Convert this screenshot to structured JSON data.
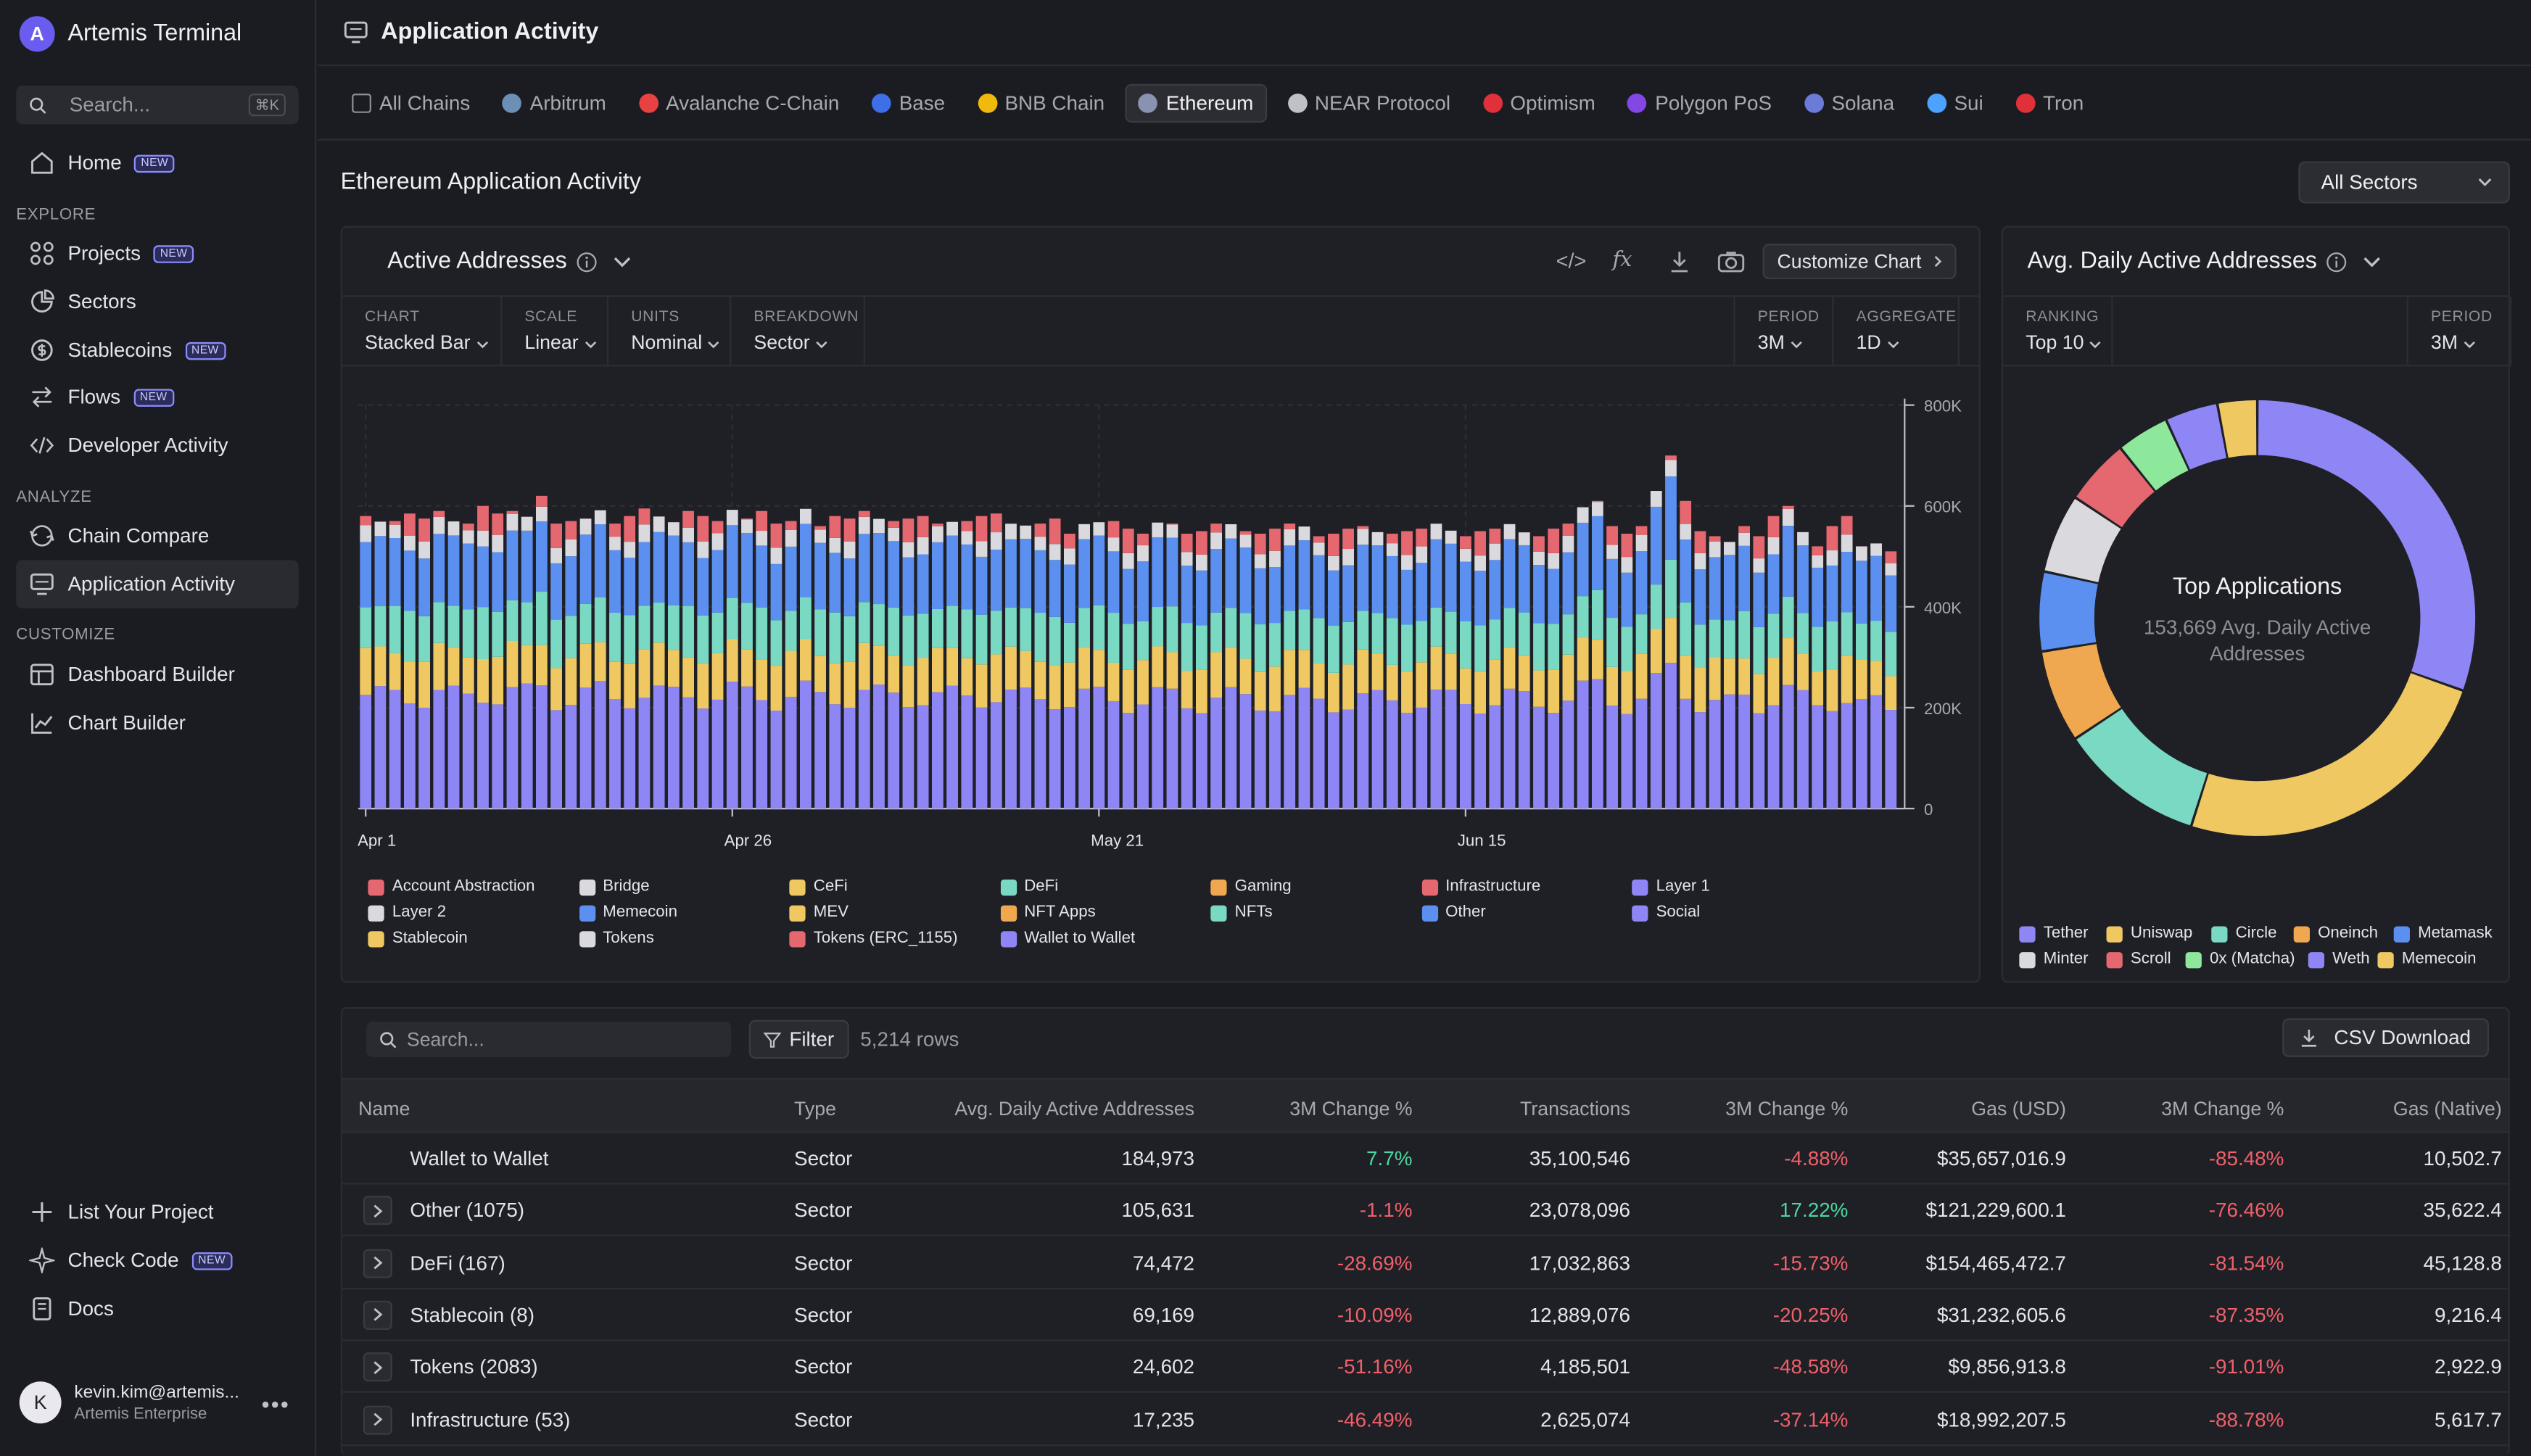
{
  "brand": {
    "name": "Artemis Terminal",
    "logo_letter": "A"
  },
  "sidebar": {
    "search_placeholder": "Search...",
    "search_kbd": "⌘K",
    "new_badge": "NEW",
    "items": [
      {
        "label": "Home",
        "icon": "home-icon",
        "badge": true
      },
      {
        "label": "Projects",
        "icon": "grid-icon",
        "badge": true
      },
      {
        "label": "Sectors",
        "icon": "pie-icon",
        "badge": false
      },
      {
        "label": "Stablecoins",
        "icon": "dollar-icon",
        "badge": true
      },
      {
        "label": "Flows",
        "icon": "arrows-icon",
        "badge": true
      },
      {
        "label": "Developer Activity",
        "icon": "code-icon",
        "badge": false
      },
      {
        "label": "Chain Compare",
        "icon": "compare-icon",
        "badge": false
      },
      {
        "label": "Application Activity",
        "icon": "monitor-icon",
        "badge": false,
        "active": true
      },
      {
        "label": "Dashboard Builder",
        "icon": "dashboard-icon",
        "badge": false
      },
      {
        "label": "Chart Builder",
        "icon": "chart-icon",
        "badge": false
      },
      {
        "label": "List Your Project",
        "icon": "plus-icon",
        "badge": false
      },
      {
        "label": "Check Code",
        "icon": "sparkle-icon",
        "badge": true
      },
      {
        "label": "Docs",
        "icon": "docs-icon",
        "badge": false
      }
    ],
    "sections": {
      "explore": "EXPLORE",
      "analyze": "ANALYZE",
      "customize": "CUSTOMIZE"
    },
    "user": {
      "initial": "K",
      "email": "kevin.kim@artemis...",
      "org": "Artemis Enterprise"
    }
  },
  "header": {
    "title": "Application Activity"
  },
  "chains": [
    {
      "label": "All Chains",
      "color": "#8d8e96"
    },
    {
      "label": "Arbitrum",
      "color": "#6b8fb5"
    },
    {
      "label": "Avalanche C-Chain",
      "color": "#e84142"
    },
    {
      "label": "Base",
      "color": "#3e6ee8"
    },
    {
      "label": "BNB Chain",
      "color": "#f0b90b"
    },
    {
      "label": "Ethereum",
      "color": "#8a92b2",
      "active": true
    },
    {
      "label": "NEAR Protocol",
      "color": "#c0c1c8"
    },
    {
      "label": "Optimism",
      "color": "#e0303a"
    },
    {
      "label": "Polygon PoS",
      "color": "#8247e5"
    },
    {
      "label": "Solana",
      "color": "#6a7bd8"
    },
    {
      "label": "Sui",
      "color": "#4da2ff"
    },
    {
      "label": "Tron",
      "color": "#e0303a"
    }
  ],
  "page": {
    "title": "Ethereum Application Activity",
    "sector_select": "All Sectors"
  },
  "main_chart": {
    "title": "Active Addresses",
    "customize": "Customize Chart",
    "controls": [
      {
        "key": "CHART",
        "value": "Stacked Bar"
      },
      {
        "key": "SCALE",
        "value": "Linear"
      },
      {
        "key": "UNITS",
        "value": "Nominal"
      },
      {
        "key": "BREAKDOWN",
        "value": "Sector"
      },
      {
        "key": "PERIOD",
        "value": "3M"
      },
      {
        "key": "AGGREGATE",
        "value": "1D"
      }
    ]
  },
  "donut_panel": {
    "title": "Avg. Daily Active Addresses",
    "controls": [
      {
        "key": "RANKING",
        "value": "Top 10"
      },
      {
        "key": "PERIOD",
        "value": "3M"
      }
    ],
    "center_title": "Top Applications",
    "center_sub1": "153,669 Avg. Daily Active",
    "center_sub2": "Addresses"
  },
  "table": {
    "search_placeholder": "Search...",
    "filter_label": "Filter",
    "row_count": "5,214 rows",
    "csv_label": "CSV Download",
    "columns": [
      "Name",
      "Type",
      "Avg. Daily Active Addresses",
      "3M Change %",
      "Transactions",
      "3M Change %",
      "Gas (USD)",
      "3M Change %",
      "Gas (Native)"
    ],
    "rows": [
      {
        "name": "Wallet to Wallet",
        "type": "Sector",
        "daa": "184,973",
        "daa_chg": "7.7%",
        "tx": "35,100,546",
        "tx_chg": "-4.88%",
        "gas_usd": "$35,657,016.9",
        "gas_chg": "-85.48%",
        "gas_native": "10,502.7",
        "expandable": false
      },
      {
        "name": "Other (1075)",
        "type": "Sector",
        "daa": "105,631",
        "daa_chg": "-1.1%",
        "tx": "23,078,096",
        "tx_chg": "17.22%",
        "gas_usd": "$121,229,600.1",
        "gas_chg": "-76.46%",
        "gas_native": "35,622.4",
        "expandable": true
      },
      {
        "name": "DeFi (167)",
        "type": "Sector",
        "daa": "74,472",
        "daa_chg": "-28.69%",
        "tx": "17,032,863",
        "tx_chg": "-15.73%",
        "gas_usd": "$154,465,472.7",
        "gas_chg": "-81.54%",
        "gas_native": "45,128.8",
        "expandable": true
      },
      {
        "name": "Stablecoin (8)",
        "type": "Sector",
        "daa": "69,169",
        "daa_chg": "-10.09%",
        "tx": "12,889,076",
        "tx_chg": "-20.25%",
        "gas_usd": "$31,232,605.6",
        "gas_chg": "-87.35%",
        "gas_native": "9,216.4",
        "expandable": true
      },
      {
        "name": "Tokens (2083)",
        "type": "Sector",
        "daa": "24,602",
        "daa_chg": "-51.16%",
        "tx": "4,185,501",
        "tx_chg": "-48.58%",
        "gas_usd": "$9,856,913.8",
        "gas_chg": "-91.01%",
        "gas_native": "2,922.9",
        "expandable": true
      },
      {
        "name": "Infrastructure (53)",
        "type": "Sector",
        "daa": "17,235",
        "daa_chg": "-46.49%",
        "tx": "2,625,074",
        "tx_chg": "-37.14%",
        "gas_usd": "$18,992,207.5",
        "gas_chg": "-88.78%",
        "gas_native": "5,617.7",
        "expandable": true
      }
    ]
  },
  "chart_data": [
    {
      "type": "bar",
      "stacked": true,
      "title": "Active Addresses",
      "x_tick_labels": [
        "Apr 1",
        "Apr 26",
        "May 21",
        "Jun 15"
      ],
      "y_tick_labels": [
        "0",
        "200K",
        "400K",
        "600K",
        "800K"
      ],
      "ylim": [
        0,
        800000
      ],
      "legend_position": "bottom",
      "grid": true,
      "series": [
        {
          "name": "Wallet to Wallet",
          "color": "#8f86f5",
          "avg": 185000
        },
        {
          "name": "Stablecoin",
          "color": "#f0c862",
          "avg": 69000
        },
        {
          "name": "DeFi",
          "color": "#7ad9c2",
          "avg": 74000
        },
        {
          "name": "Other",
          "color": "#5b8ff0",
          "avg": 106000
        },
        {
          "name": "Tokens",
          "color": "#d9d9de",
          "avg": 25000
        },
        {
          "name": "Infrastructure",
          "color": "#e5676f",
          "avg": 17000
        },
        {
          "name": "Account Abstraction",
          "color": "#e5676f",
          "avg": 0
        },
        {
          "name": "Bridge",
          "color": "#d9d9de",
          "avg": 0
        },
        {
          "name": "CeFi",
          "color": "#f0c862",
          "avg": 0
        },
        {
          "name": "Gaming",
          "color": "#f0a850",
          "avg": 0
        },
        {
          "name": "Layer 1",
          "color": "#8f86f5",
          "avg": 0
        },
        {
          "name": "Layer 2",
          "color": "#d9d9de",
          "avg": 0
        },
        {
          "name": "Memecoin",
          "color": "#5b8ff0",
          "avg": 0
        },
        {
          "name": "MEV",
          "color": "#f0c862",
          "avg": 0
        },
        {
          "name": "NFT Apps",
          "color": "#f0a850",
          "avg": 0
        },
        {
          "name": "NFTs",
          "color": "#7ad9c2",
          "avg": 0
        },
        {
          "name": "Social",
          "color": "#8f86f5",
          "avg": 0
        },
        {
          "name": "Tokens (ERC_1155)",
          "color": "#e5676f",
          "avg": 0
        }
      ],
      "totals_by_day": [
        580000,
        560000,
        570000,
        585000,
        575000,
        590000,
        560000,
        565000,
        600000,
        585000,
        590000,
        570000,
        620000,
        565000,
        570000,
        575000,
        585000,
        565000,
        580000,
        595000,
        575000,
        565000,
        590000,
        580000,
        570000,
        585000,
        575000,
        590000,
        565000,
        570000,
        585000,
        560000,
        580000,
        575000,
        590000,
        565000,
        570000,
        575000,
        580000,
        565000,
        560000,
        570000,
        580000,
        585000,
        565000,
        555000,
        565000,
        575000,
        545000,
        560000,
        565000,
        570000,
        555000,
        545000,
        560000,
        565000,
        545000,
        550000,
        565000,
        555000,
        550000,
        545000,
        555000,
        565000,
        550000,
        540000,
        545000,
        555000,
        560000,
        540000,
        545000,
        550000,
        555000,
        565000,
        545000,
        540000,
        550000,
        555000,
        560000,
        545000,
        540000,
        555000,
        565000,
        590000,
        610000,
        560000,
        545000,
        560000,
        620000,
        700000,
        610000,
        550000,
        540000,
        520000,
        560000,
        540000,
        580000,
        600000,
        540000,
        520000,
        560000,
        580000,
        520000,
        520000,
        510000
      ]
    },
    {
      "type": "pie",
      "donut": true,
      "title": "Avg. Daily Active Addresses",
      "legend_position": "bottom",
      "labels": [
        "Tether",
        "Uniswap",
        "Circle",
        "Oneinch",
        "Metamask",
        "Minter",
        "Scroll",
        "0x (Matcha)",
        "Weth",
        "Memecoin"
      ],
      "values": [
        31,
        25,
        11,
        7,
        6,
        6,
        5,
        4,
        4,
        3
      ],
      "colors": [
        "#8f86f5",
        "#f0c862",
        "#7ad9c2",
        "#f0a850",
        "#5b8ff0",
        "#d9d9de",
        "#e5676f",
        "#8ee89c",
        "#8f86f5",
        "#f0c862"
      ]
    }
  ]
}
